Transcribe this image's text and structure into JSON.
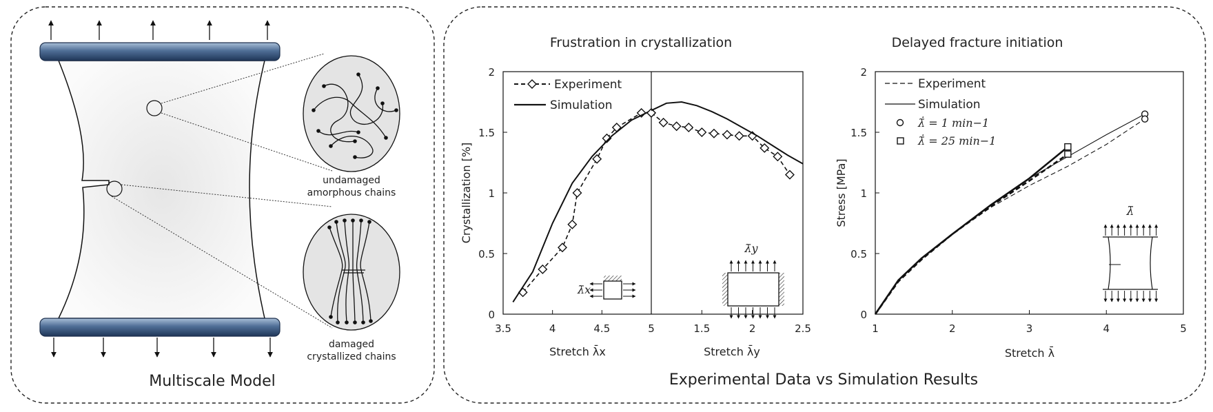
{
  "left_panel": {
    "title": "Multiscale Model",
    "label_top_line1": "undamaged",
    "label_top_line2": "amorphous chains",
    "label_bottom_line1": "damaged",
    "label_bottom_line2": "crystallized chains"
  },
  "right_panel": {
    "title": "Experimental Data vs Simulation Results"
  },
  "chart_data": [
    {
      "type": "line",
      "title": "Frustration in crystallization",
      "ylabel": "Crystallization [%]",
      "xlabel_left": "Stretch λ̄x",
      "xlabel_right": "Stretch λ̄y",
      "ylim": [
        0,
        2
      ],
      "yticks": [
        "0",
        "0.5",
        "1",
        "1.5",
        "2"
      ],
      "xticks_left": [
        "3.5",
        "4",
        "4.5",
        "5"
      ],
      "xticks_right": [
        "1.5",
        "2",
        "2.5"
      ],
      "legend": {
        "position": "top-left",
        "entries": [
          "Experiment",
          "Simulation"
        ]
      },
      "inset_left_label": "λ̄x",
      "inset_right_label": "λ̄y",
      "series": [
        {
          "name": "Experiment",
          "segment": "left",
          "marker": "diamond",
          "style": "dashed",
          "x": [
            3.7,
            3.9,
            4.1,
            4.2,
            4.25,
            4.45,
            4.55,
            4.65,
            4.9,
            5.0
          ],
          "y": [
            0.18,
            0.37,
            0.55,
            0.74,
            1.0,
            1.28,
            1.45,
            1.54,
            1.66,
            1.66
          ]
        },
        {
          "name": "Simulation",
          "segment": "left",
          "style": "solid",
          "x": [
            3.6,
            3.8,
            4.0,
            4.2,
            4.4,
            4.6,
            4.8,
            5.0
          ],
          "y": [
            0.1,
            0.35,
            0.75,
            1.08,
            1.3,
            1.47,
            1.6,
            1.68
          ]
        },
        {
          "name": "Experiment",
          "segment": "right",
          "marker": "diamond",
          "style": "dashed",
          "x": [
            1.0,
            1.12,
            1.25,
            1.37,
            1.5,
            1.62,
            1.75,
            1.87,
            2.0,
            2.12,
            2.25,
            2.37
          ],
          "y": [
            1.66,
            1.58,
            1.55,
            1.54,
            1.5,
            1.49,
            1.48,
            1.47,
            1.47,
            1.37,
            1.3,
            1.15
          ]
        },
        {
          "name": "Simulation",
          "segment": "right",
          "style": "solid",
          "x": [
            1.0,
            1.15,
            1.3,
            1.45,
            1.6,
            1.75,
            1.9,
            2.05,
            2.2,
            2.35,
            2.5
          ],
          "y": [
            1.68,
            1.74,
            1.75,
            1.72,
            1.67,
            1.61,
            1.54,
            1.47,
            1.39,
            1.31,
            1.24
          ]
        }
      ]
    },
    {
      "type": "line",
      "title": "Delayed fracture initiation",
      "ylabel": "Stress [MPa]",
      "xlabel": "Stretch λ̄",
      "xlim": [
        1,
        5
      ],
      "ylim": [
        0,
        2
      ],
      "xticks": [
        "1",
        "2",
        "3",
        "4",
        "5"
      ],
      "yticks": [
        "0",
        "0.5",
        "1",
        "1.5",
        "2"
      ],
      "legend": {
        "position": "top-left",
        "entries": [
          "Experiment",
          "Simulation",
          "λ̄̇ = 1 min−1",
          "λ̄̇ = 25 min−1"
        ]
      },
      "inset_label": "λ̄",
      "series": [
        {
          "name": "Experiment",
          "rate": "1",
          "style": "dashed-thin",
          "x": [
            1,
            1.3,
            1.6,
            2.0,
            2.5,
            3.0,
            3.5,
            4.0,
            4.5
          ],
          "y": [
            0,
            0.28,
            0.46,
            0.66,
            0.88,
            1.06,
            1.22,
            1.4,
            1.61
          ]
        },
        {
          "name": "Simulation",
          "rate": "1",
          "style": "solid-thin",
          "x": [
            1,
            1.3,
            1.6,
            2.0,
            2.5,
            3.0,
            3.5,
            4.0,
            4.5
          ],
          "y": [
            0,
            0.28,
            0.46,
            0.66,
            0.9,
            1.12,
            1.3,
            1.48,
            1.65
          ]
        },
        {
          "name": "Experiment",
          "rate": "25",
          "style": "dashed-thick",
          "x": [
            1,
            1.3,
            1.6,
            2.0,
            2.5,
            3.0,
            3.5
          ],
          "y": [
            0,
            0.27,
            0.45,
            0.66,
            0.89,
            1.1,
            1.32
          ]
        },
        {
          "name": "Simulation",
          "rate": "25",
          "style": "solid-thick",
          "x": [
            1,
            1.3,
            1.6,
            2.0,
            2.5,
            3.0,
            3.5
          ],
          "y": [
            0,
            0.28,
            0.46,
            0.66,
            0.9,
            1.12,
            1.38
          ]
        }
      ],
      "endpoints": [
        {
          "rate": "1",
          "marker": "circle",
          "points": [
            [
              4.5,
              1.65
            ],
            [
              4.5,
              1.61
            ]
          ]
        },
        {
          "rate": "25",
          "marker": "square",
          "points": [
            [
              3.5,
              1.38
            ],
            [
              3.5,
              1.32
            ]
          ]
        }
      ]
    }
  ]
}
